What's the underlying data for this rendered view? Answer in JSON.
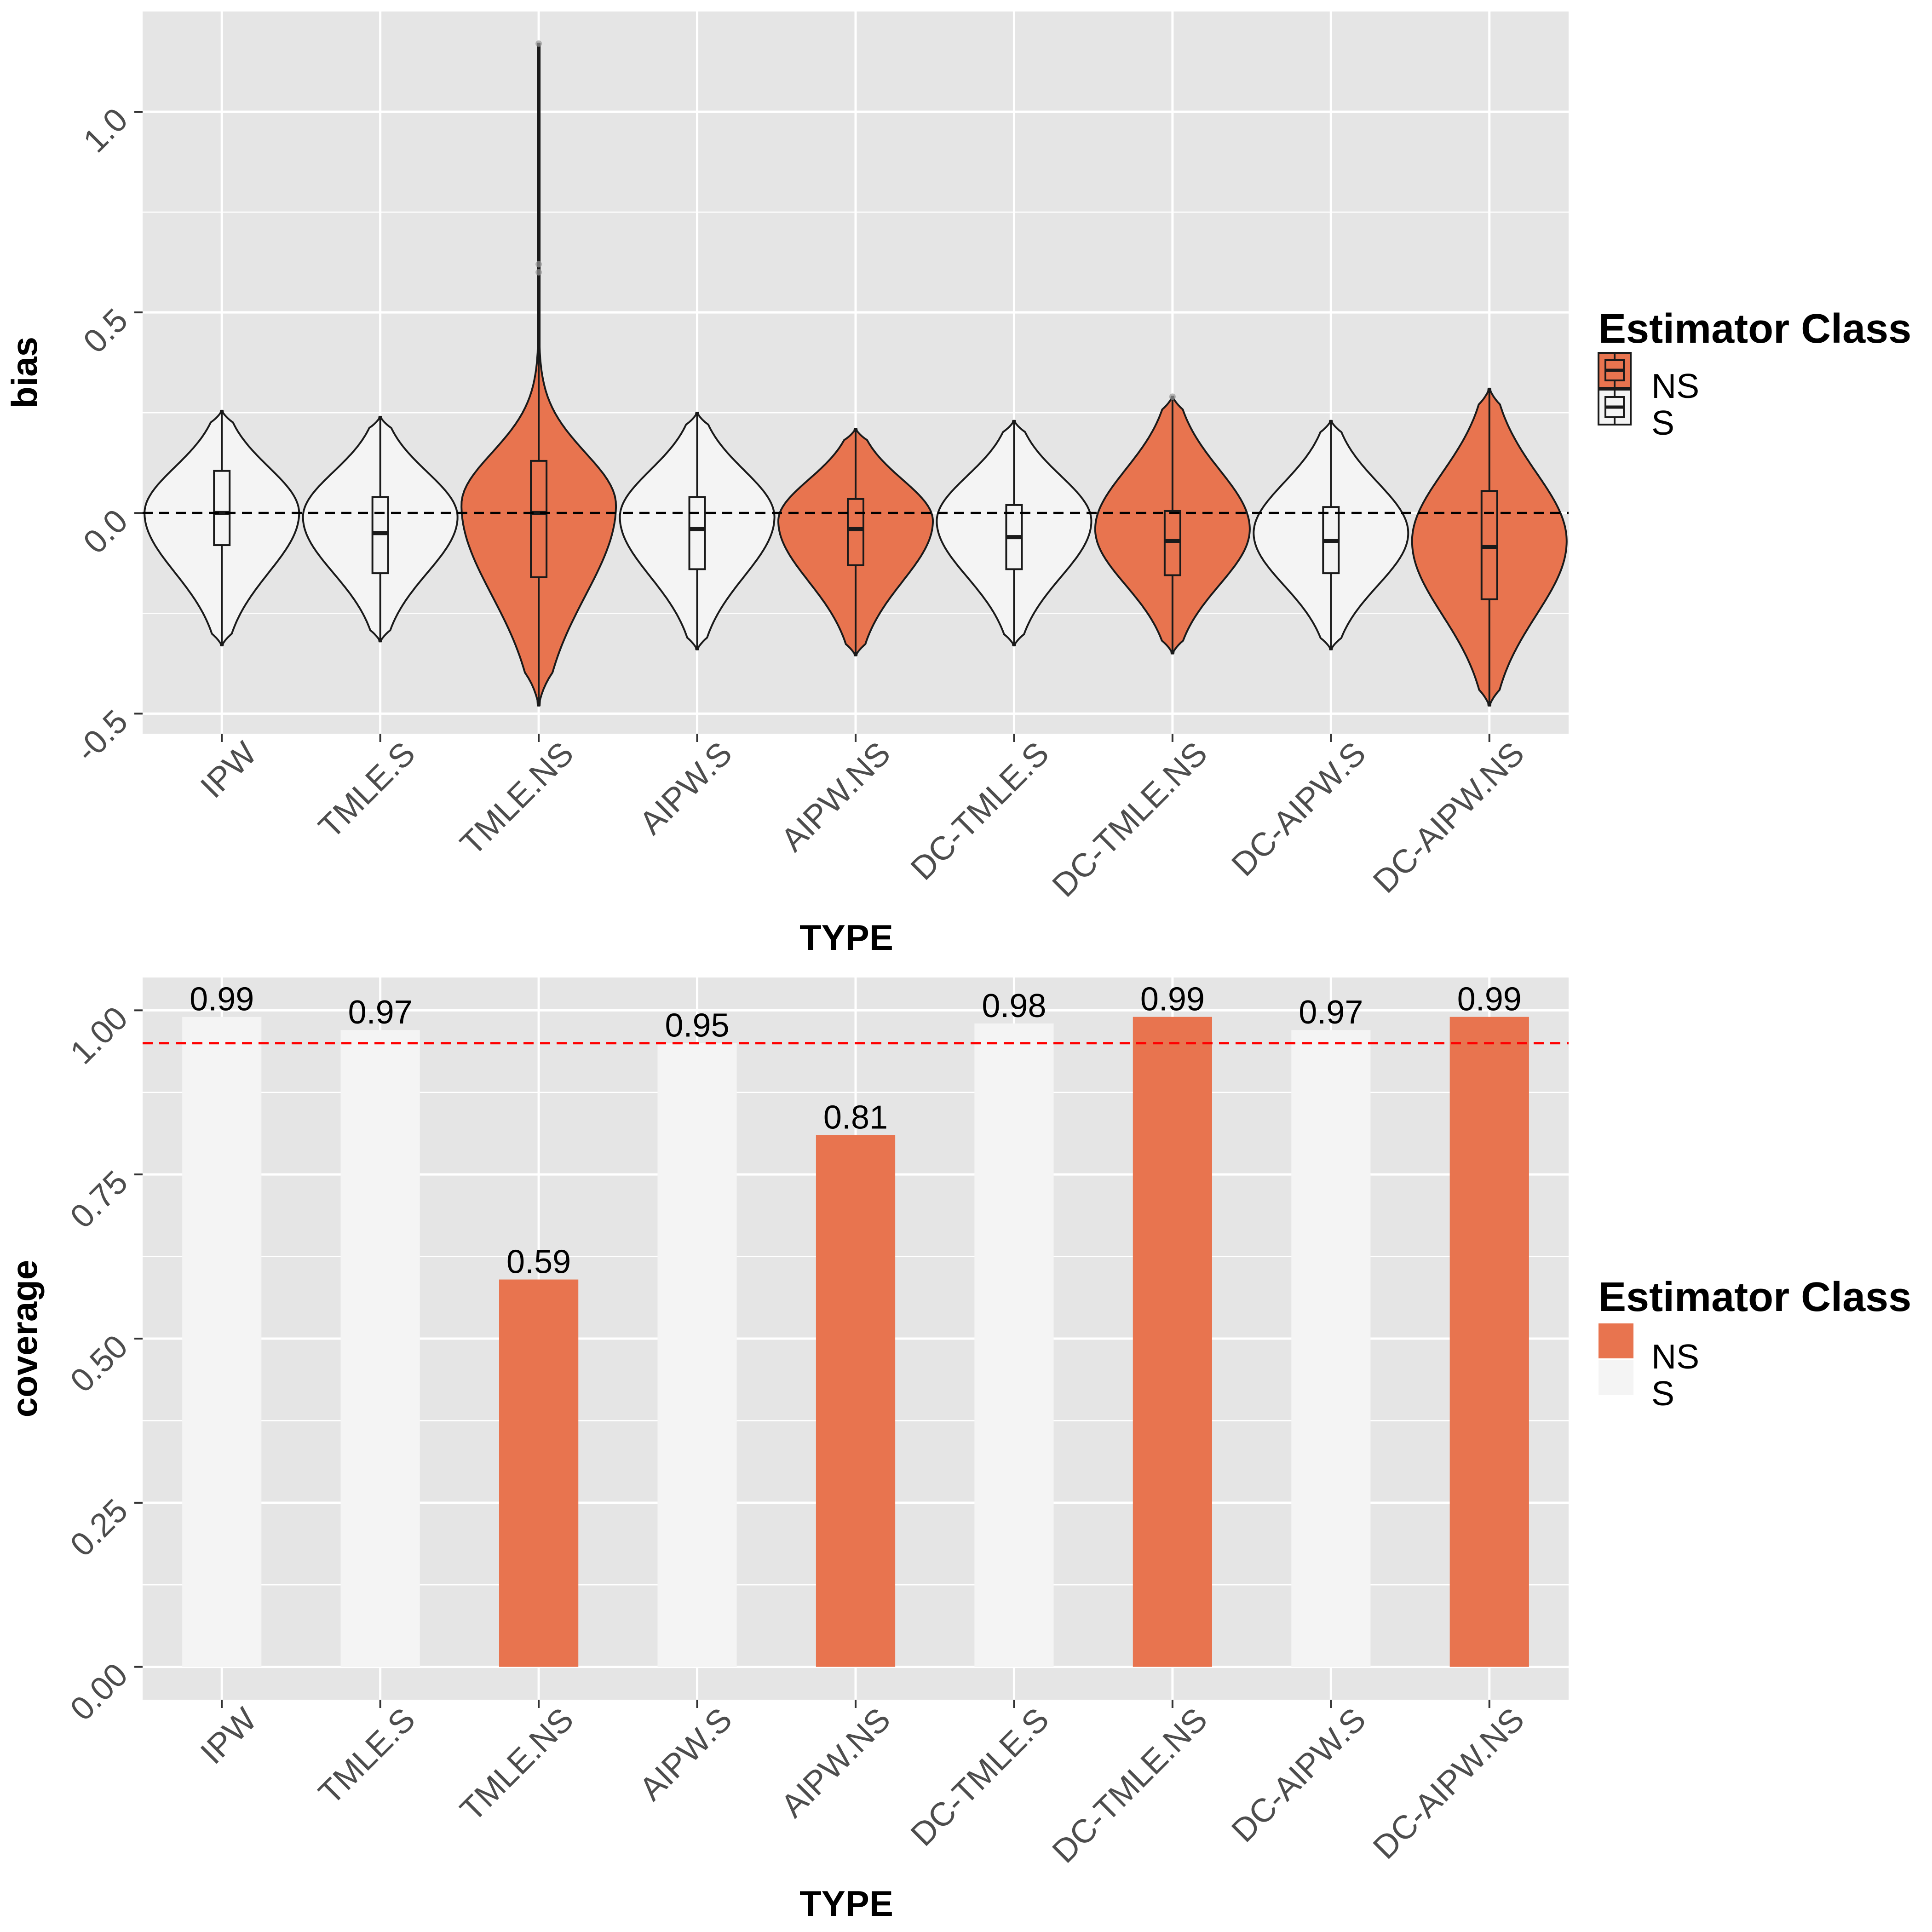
{
  "colors": {
    "NS": "#E8744F",
    "S": "#F4F4F4",
    "panel": "#E5E5E5",
    "grid": "#FFFFFF",
    "reference_red": "#FF0000",
    "reference_black": "#000000"
  },
  "chart_data": [
    {
      "type": "violin",
      "xlabel": "TYPE",
      "ylabel": "bias",
      "ylim": [
        -0.55,
        1.25
      ],
      "yticks": [
        -0.5,
        0.0,
        0.5,
        1.0
      ],
      "ytick_labels": [
        "-0.5",
        "0.0",
        "0.5",
        "1.0"
      ],
      "reference_line": {
        "y": 0.0,
        "style": "dashed",
        "color": "black"
      },
      "legend": {
        "title": "Estimator Class",
        "entries": [
          "NS",
          "S"
        ],
        "position": "right"
      },
      "categories": [
        "IPW",
        "TMLE.S",
        "TMLE.NS",
        "AIPW.S",
        "AIPW.NS",
        "DC-TMLE.S",
        "DC-TMLE.NS",
        "DC-AIPW.S",
        "DC-AIPW.NS"
      ],
      "series": [
        {
          "name": "IPW",
          "class": "S",
          "min": -0.33,
          "max": 0.255,
          "q1": -0.08,
          "median": 0.0,
          "q3": 0.105,
          "peak": 0.0,
          "outliers": []
        },
        {
          "name": "TMLE.S",
          "class": "S",
          "min": -0.32,
          "max": 0.24,
          "q1": -0.15,
          "median": -0.05,
          "q3": 0.04,
          "peak": -0.01,
          "outliers": []
        },
        {
          "name": "TMLE.NS",
          "class": "NS",
          "min": -0.48,
          "max": 1.17,
          "q1": -0.16,
          "median": 0.0,
          "q3": 0.13,
          "peak": 0.02,
          "outliers": [
            1.17,
            0.62,
            0.6
          ]
        },
        {
          "name": "AIPW.S",
          "class": "S",
          "min": -0.34,
          "max": 0.25,
          "q1": -0.14,
          "median": -0.04,
          "q3": 0.04,
          "peak": -0.01,
          "outliers": []
        },
        {
          "name": "AIPW.NS",
          "class": "NS",
          "min": -0.355,
          "max": 0.21,
          "q1": -0.13,
          "median": -0.04,
          "q3": 0.035,
          "peak": -0.02,
          "outliers": []
        },
        {
          "name": "DC-TMLE.S",
          "class": "S",
          "min": -0.33,
          "max": 0.23,
          "q1": -0.14,
          "median": -0.06,
          "q3": 0.02,
          "peak": -0.02,
          "outliers": []
        },
        {
          "name": "DC-TMLE.NS",
          "class": "NS",
          "min": -0.35,
          "max": 0.29,
          "q1": -0.155,
          "median": -0.07,
          "q3": 0.005,
          "peak": -0.04,
          "outliers": [
            0.29
          ]
        },
        {
          "name": "DC-AIPW.S",
          "class": "S",
          "min": -0.34,
          "max": 0.23,
          "q1": -0.15,
          "median": -0.07,
          "q3": 0.015,
          "peak": -0.05,
          "outliers": []
        },
        {
          "name": "DC-AIPW.NS",
          "class": "NS",
          "min": -0.48,
          "max": 0.31,
          "q1": -0.215,
          "median": -0.085,
          "q3": 0.055,
          "peak": -0.07,
          "outliers": []
        }
      ]
    },
    {
      "type": "bar",
      "xlabel": "TYPE",
      "ylabel": "coverage",
      "ylim": [
        -0.05,
        1.05
      ],
      "yticks": [
        0.0,
        0.25,
        0.5,
        0.75,
        1.0
      ],
      "ytick_labels": [
        "0.00",
        "0.25",
        "0.50",
        "0.75",
        "1.00"
      ],
      "reference_line": {
        "y": 0.95,
        "style": "dashed",
        "color": "red"
      },
      "legend": {
        "title": "Estimator Class",
        "entries": [
          "NS",
          "S"
        ],
        "position": "right"
      },
      "categories": [
        "IPW",
        "TMLE.S",
        "TMLE.NS",
        "AIPW.S",
        "AIPW.NS",
        "DC-TMLE.S",
        "DC-TMLE.NS",
        "DC-AIPW.S",
        "DC-AIPW.NS"
      ],
      "classes": [
        "S",
        "S",
        "NS",
        "S",
        "NS",
        "S",
        "NS",
        "S",
        "NS"
      ],
      "values": [
        0.99,
        0.97,
        0.59,
        0.95,
        0.81,
        0.98,
        0.99,
        0.97,
        0.99
      ],
      "value_labels": [
        "0.99",
        "0.97",
        "0.59",
        "0.95",
        "0.81",
        "0.98",
        "0.99",
        "0.97",
        "0.99"
      ]
    }
  ]
}
